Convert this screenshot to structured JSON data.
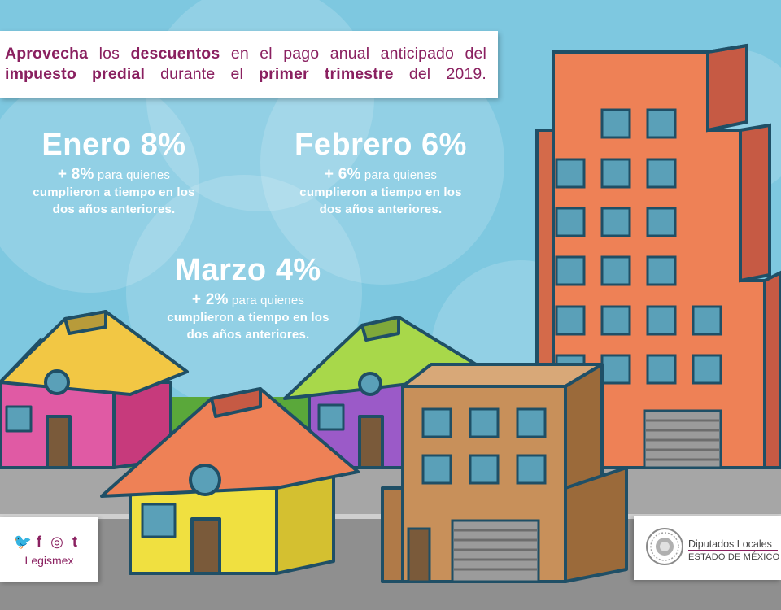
{
  "banner": {
    "w1": "Aprovecha",
    "t1": " los ",
    "w2": "descuentos",
    "t2": " en el pago anual anticipado del ",
    "w3": "impuesto predial",
    "t3": " durante el ",
    "w4": "primer trimestre",
    "t4": " del 2019."
  },
  "promos": [
    {
      "month": "Enero 8%",
      "extra_pct": "+ 8%",
      "extra_text": " para quienes",
      "line2": "cumplieron a tiempo en los",
      "line3": "dos años anteriores."
    },
    {
      "month": "Febrero 6%",
      "extra_pct": "+ 6%",
      "extra_text": " para quienes",
      "line2": "cumplieron a tiempo en los",
      "line3": "dos años anteriores."
    },
    {
      "month": "Marzo 4%",
      "extra_pct": "+ 2%",
      "extra_text": " para quienes",
      "line2": "cumplieron a tiempo en los",
      "line3": "dos años anteriores."
    }
  ],
  "social": {
    "icons": [
      "twitter-icon",
      "facebook-icon",
      "instagram-icon",
      "tumblr-icon"
    ],
    "twitter": "🐦",
    "facebook": "f",
    "instagram": "◎",
    "tumblr": "t",
    "handle": "Legismex"
  },
  "logo": {
    "line1": "Diputados Locales",
    "line2": "ESTADO DE MÉXICO"
  },
  "colors": {
    "sky": "#7ec8e0",
    "accent": "#8a2060",
    "outline": "#1f4f66",
    "grass": "#5aa83a",
    "road": "#a6a6a6"
  }
}
